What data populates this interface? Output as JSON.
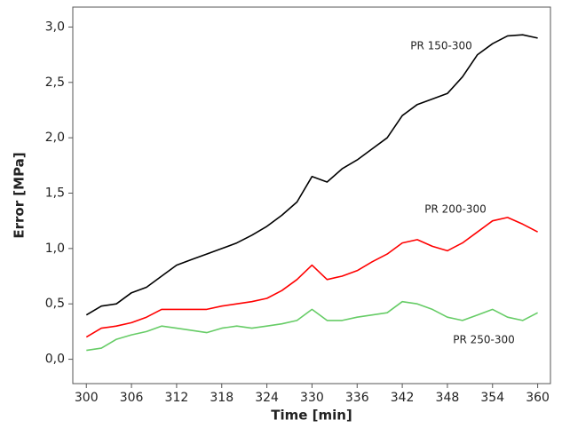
{
  "chart_data": {
    "type": "line",
    "x_label": "Time [min]",
    "y_label": "Error [MPa]",
    "x": [
      300,
      302,
      304,
      306,
      308,
      310,
      312,
      314,
      316,
      318,
      320,
      322,
      324,
      326,
      328,
      330,
      332,
      334,
      336,
      338,
      340,
      342,
      344,
      346,
      348,
      350,
      352,
      354,
      356,
      358,
      360
    ],
    "series": [
      {
        "name": "PR 150-300",
        "color": "#000000",
        "values": [
          0.4,
          0.48,
          0.5,
          0.6,
          0.65,
          0.75,
          0.85,
          0.9,
          0.95,
          1.0,
          1.05,
          1.12,
          1.2,
          1.3,
          1.42,
          1.65,
          1.6,
          1.72,
          1.8,
          1.9,
          2.0,
          2.2,
          2.3,
          2.35,
          2.4,
          2.55,
          2.75,
          2.85,
          2.92,
          2.93,
          2.9
        ]
      },
      {
        "name": "PR 200-300",
        "color": "#ff0000",
        "values": [
          0.2,
          0.28,
          0.3,
          0.33,
          0.38,
          0.45,
          0.45,
          0.45,
          0.45,
          0.48,
          0.5,
          0.52,
          0.55,
          0.62,
          0.72,
          0.85,
          0.72,
          0.75,
          0.8,
          0.88,
          0.95,
          1.05,
          1.08,
          1.02,
          0.98,
          1.05,
          1.15,
          1.25,
          1.28,
          1.22,
          1.15
        ]
      },
      {
        "name": "PR 250-300",
        "color": "#66cc66",
        "values": [
          0.08,
          0.1,
          0.18,
          0.22,
          0.25,
          0.3,
          0.28,
          0.26,
          0.24,
          0.28,
          0.3,
          0.28,
          0.3,
          0.32,
          0.35,
          0.45,
          0.35,
          0.35,
          0.38,
          0.4,
          0.42,
          0.52,
          0.5,
          0.45,
          0.38,
          0.35,
          0.4,
          0.45,
          0.38,
          0.35,
          0.42
        ]
      }
    ],
    "xlim": [
      298.2,
      361.7
    ],
    "ylim": [
      -0.22,
      3.18
    ],
    "xticks": [
      300,
      306,
      312,
      318,
      324,
      330,
      336,
      342,
      348,
      354,
      360
    ],
    "yticks": [
      {
        "value": 0,
        "label": "0,0"
      },
      {
        "value": 0.5,
        "label": "0,5"
      },
      {
        "value": 1,
        "label": "1,0"
      },
      {
        "value": 1.5,
        "label": "1,5"
      },
      {
        "value": 2,
        "label": "2,0"
      },
      {
        "value": 2.5,
        "label": "2,5"
      },
      {
        "value": 3,
        "label": "3,0"
      }
    ],
    "grid": false
  }
}
